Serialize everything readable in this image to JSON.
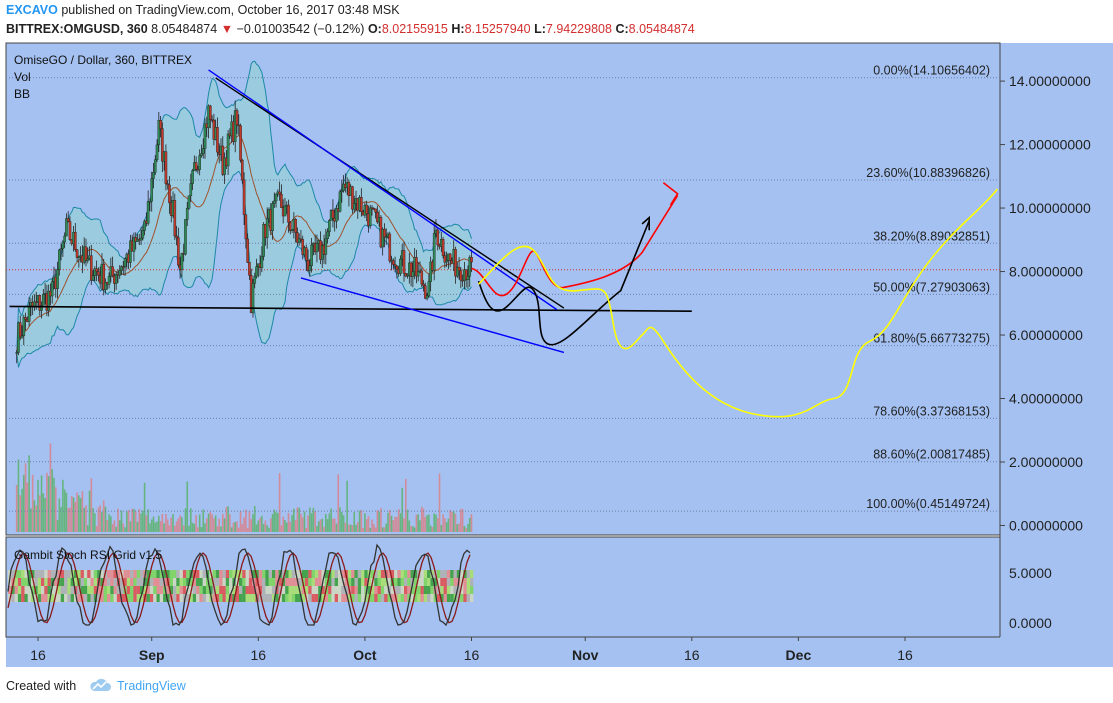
{
  "header": {
    "author": "EXCAVO",
    "published_text": "published on TradingView.com, October 16, 2017 03:48 MSK",
    "symbol": "BITTREX:OMGUSD, 360",
    "last_price": "8.05484874",
    "change": "−0.01003542 (−0.12%)",
    "open_label": "O:",
    "open_value": "8.02155915",
    "high_label": "H:",
    "high_value": "8.15257940",
    "low_label": "L:",
    "low_value": "7.94229808",
    "close_label": "C:",
    "close_value": "8.05484874"
  },
  "legend": {
    "title": "OmiseGO / Dollar, 360, BITTREX",
    "vol": "Vol",
    "bb": "BB",
    "subpanel_title": "Gambit Stoch RSI Grid v1.5"
  },
  "footer": {
    "created_with": "Created with",
    "brand": "TradingView"
  },
  "colors": {
    "background": "#a4c1f1",
    "candle_up": "#2e8b57",
    "candle_down": "#c0392b",
    "bb_fill": "#8fd6c8",
    "wedge_upper": "#0000ff",
    "wedge_lower": "#0000ff",
    "black_lines": "#000000",
    "red_path": "#ff0000",
    "yellow_path": "#ffff00"
  },
  "chart_data": {
    "type": "line",
    "title": "OmiseGO / Dollar, 360, BITTREX",
    "x_axis_ticks": [
      "16",
      "Sep",
      "16",
      "Oct",
      "16",
      "Nov",
      "16",
      "Dec",
      "16"
    ],
    "x_tick_dates": [
      "2017-08-16",
      "2017-09-01",
      "2017-09-16",
      "2017-10-01",
      "2017-10-16",
      "2017-11-01",
      "2017-11-16",
      "2017-12-01",
      "2017-12-16"
    ],
    "y_axis_ticks": [
      "14.00000000",
      "12.00000000",
      "10.00000000",
      "8.00000000",
      "6.00000000",
      "4.00000000",
      "2.00000000",
      "0.00000000"
    ],
    "y_tick_values": [
      14,
      12,
      10,
      8,
      6,
      4,
      2,
      0
    ],
    "y_range": [
      -0.3,
      15.2
    ],
    "current_price": 8.05484874,
    "fib_levels": [
      {
        "label": "0.00%(14.10656402)",
        "value": 14.10656402
      },
      {
        "label": "23.60%(10.88396826)",
        "value": 10.88396826
      },
      {
        "label": "38.20%(8.89032851)",
        "value": 8.89032851
      },
      {
        "label": "50.00%(7.27903063)",
        "value": 7.27903063
      },
      {
        "label": "61.80%(5.66773275)",
        "value": 5.66773275
      },
      {
        "label": "78.60%(3.37368153)",
        "value": 3.37368153
      },
      {
        "label": "88.60%(2.00817485)",
        "value": 2.00817485
      },
      {
        "label": "100.00%(0.45149724)",
        "value": 0.45149724
      }
    ],
    "price_series": [
      {
        "date": "2017-08-13",
        "close": 5.9
      },
      {
        "date": "2017-08-15",
        "close": 6.8
      },
      {
        "date": "2017-08-18",
        "close": 7.3
      },
      {
        "date": "2017-08-20",
        "close": 9.3
      },
      {
        "date": "2017-08-23",
        "close": 8.2
      },
      {
        "date": "2017-08-26",
        "close": 7.7
      },
      {
        "date": "2017-08-28",
        "close": 8.3
      },
      {
        "date": "2017-08-31",
        "close": 9.2
      },
      {
        "date": "2017-09-02",
        "close": 12.5
      },
      {
        "date": "2017-09-04",
        "close": 9.8
      },
      {
        "date": "2017-09-05",
        "close": 8.1
      },
      {
        "date": "2017-09-07",
        "close": 11.2
      },
      {
        "date": "2017-09-09",
        "close": 13.0
      },
      {
        "date": "2017-09-11",
        "close": 11.4
      },
      {
        "date": "2017-09-13",
        "close": 12.9
      },
      {
        "date": "2017-09-15",
        "close": 7.1
      },
      {
        "date": "2017-09-17",
        "close": 9.4
      },
      {
        "date": "2017-09-19",
        "close": 10.2
      },
      {
        "date": "2017-09-21",
        "close": 9.3
      },
      {
        "date": "2017-09-23",
        "close": 8.3
      },
      {
        "date": "2017-09-25",
        "close": 8.7
      },
      {
        "date": "2017-09-28",
        "close": 10.7
      },
      {
        "date": "2017-09-30",
        "close": 10.2
      },
      {
        "date": "2017-10-02",
        "close": 9.7
      },
      {
        "date": "2017-10-04",
        "close": 8.9
      },
      {
        "date": "2017-10-06",
        "close": 8.3
      },
      {
        "date": "2017-10-08",
        "close": 8.0
      },
      {
        "date": "2017-10-10",
        "close": 7.4
      },
      {
        "date": "2017-10-11",
        "close": 9.3
      },
      {
        "date": "2017-10-13",
        "close": 8.3
      },
      {
        "date": "2017-10-16",
        "close": 8.05
      }
    ],
    "stoch_rsi": {
      "y_axis_ticks": [
        "5.0000",
        "0.0000"
      ]
    }
  }
}
